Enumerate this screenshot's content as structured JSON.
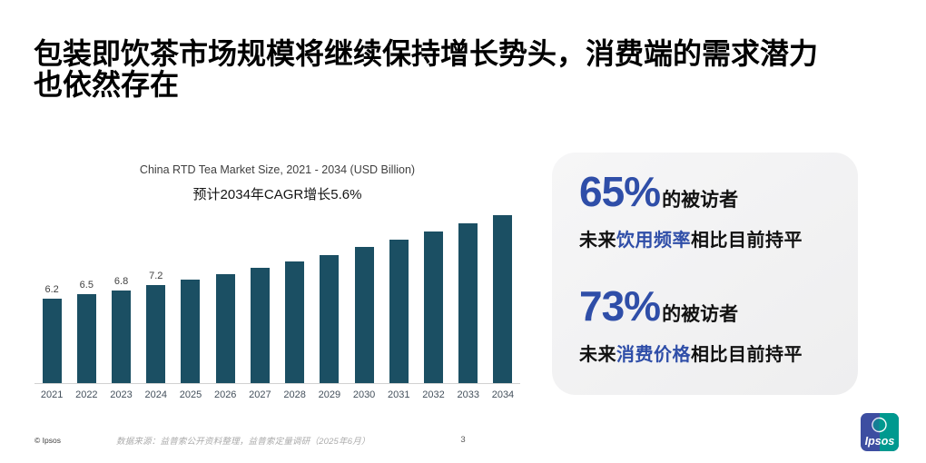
{
  "header": {
    "title_lines": [
      "包装即饮茶市场规模将继续保持增长势头，消费端的需求潜力",
      "也依然存在"
    ]
  },
  "chart_data": {
    "type": "bar",
    "title": "China RTD Tea Market Size, 2021 - 2034 (USD Billion)",
    "subtitle": "预计2034年CAGR增长5.6%",
    "categories": [
      "2021",
      "2022",
      "2023",
      "2024",
      "2025",
      "2026",
      "2027",
      "2028",
      "2029",
      "2030",
      "2031",
      "2032",
      "2033",
      "2034"
    ],
    "values": [
      6.2,
      6.5,
      6.8,
      7.2,
      7.6,
      8.0,
      8.5,
      8.9,
      9.4,
      10.0,
      10.5,
      11.1,
      11.7,
      12.4
    ],
    "data_labels": [
      "6.2",
      "6.5",
      "6.8",
      "7.2",
      "",
      "",
      "",
      "",
      "",
      "",
      "",
      "",
      "",
      ""
    ],
    "ylim": [
      0,
      12.4
    ],
    "grid": false,
    "legend": "none",
    "bar_color": "#1B4F63",
    "axis_line_color": "#d2d2d2"
  },
  "stats_panel": {
    "stats": [
      {
        "value": "65%",
        "suffix": "的被访者",
        "line_prefix": "未来",
        "line_highlight": "饮用频率",
        "line_suffix": "相比目前持平"
      },
      {
        "value": "73%",
        "suffix": "的被访者",
        "line_prefix": "未来",
        "line_highlight": "消费价格",
        "line_suffix": "相比目前持平"
      }
    ],
    "accent_color": "#2F4EA8"
  },
  "footer": {
    "copyright": "© Ipsos",
    "source": "数据来源：益普索公开资料整理，益普索定量调研（2025年6月）",
    "page_number": "3",
    "logo_text": "Ipsos",
    "logo_blue": "#3D4EA1",
    "logo_teal": "#00998F"
  }
}
